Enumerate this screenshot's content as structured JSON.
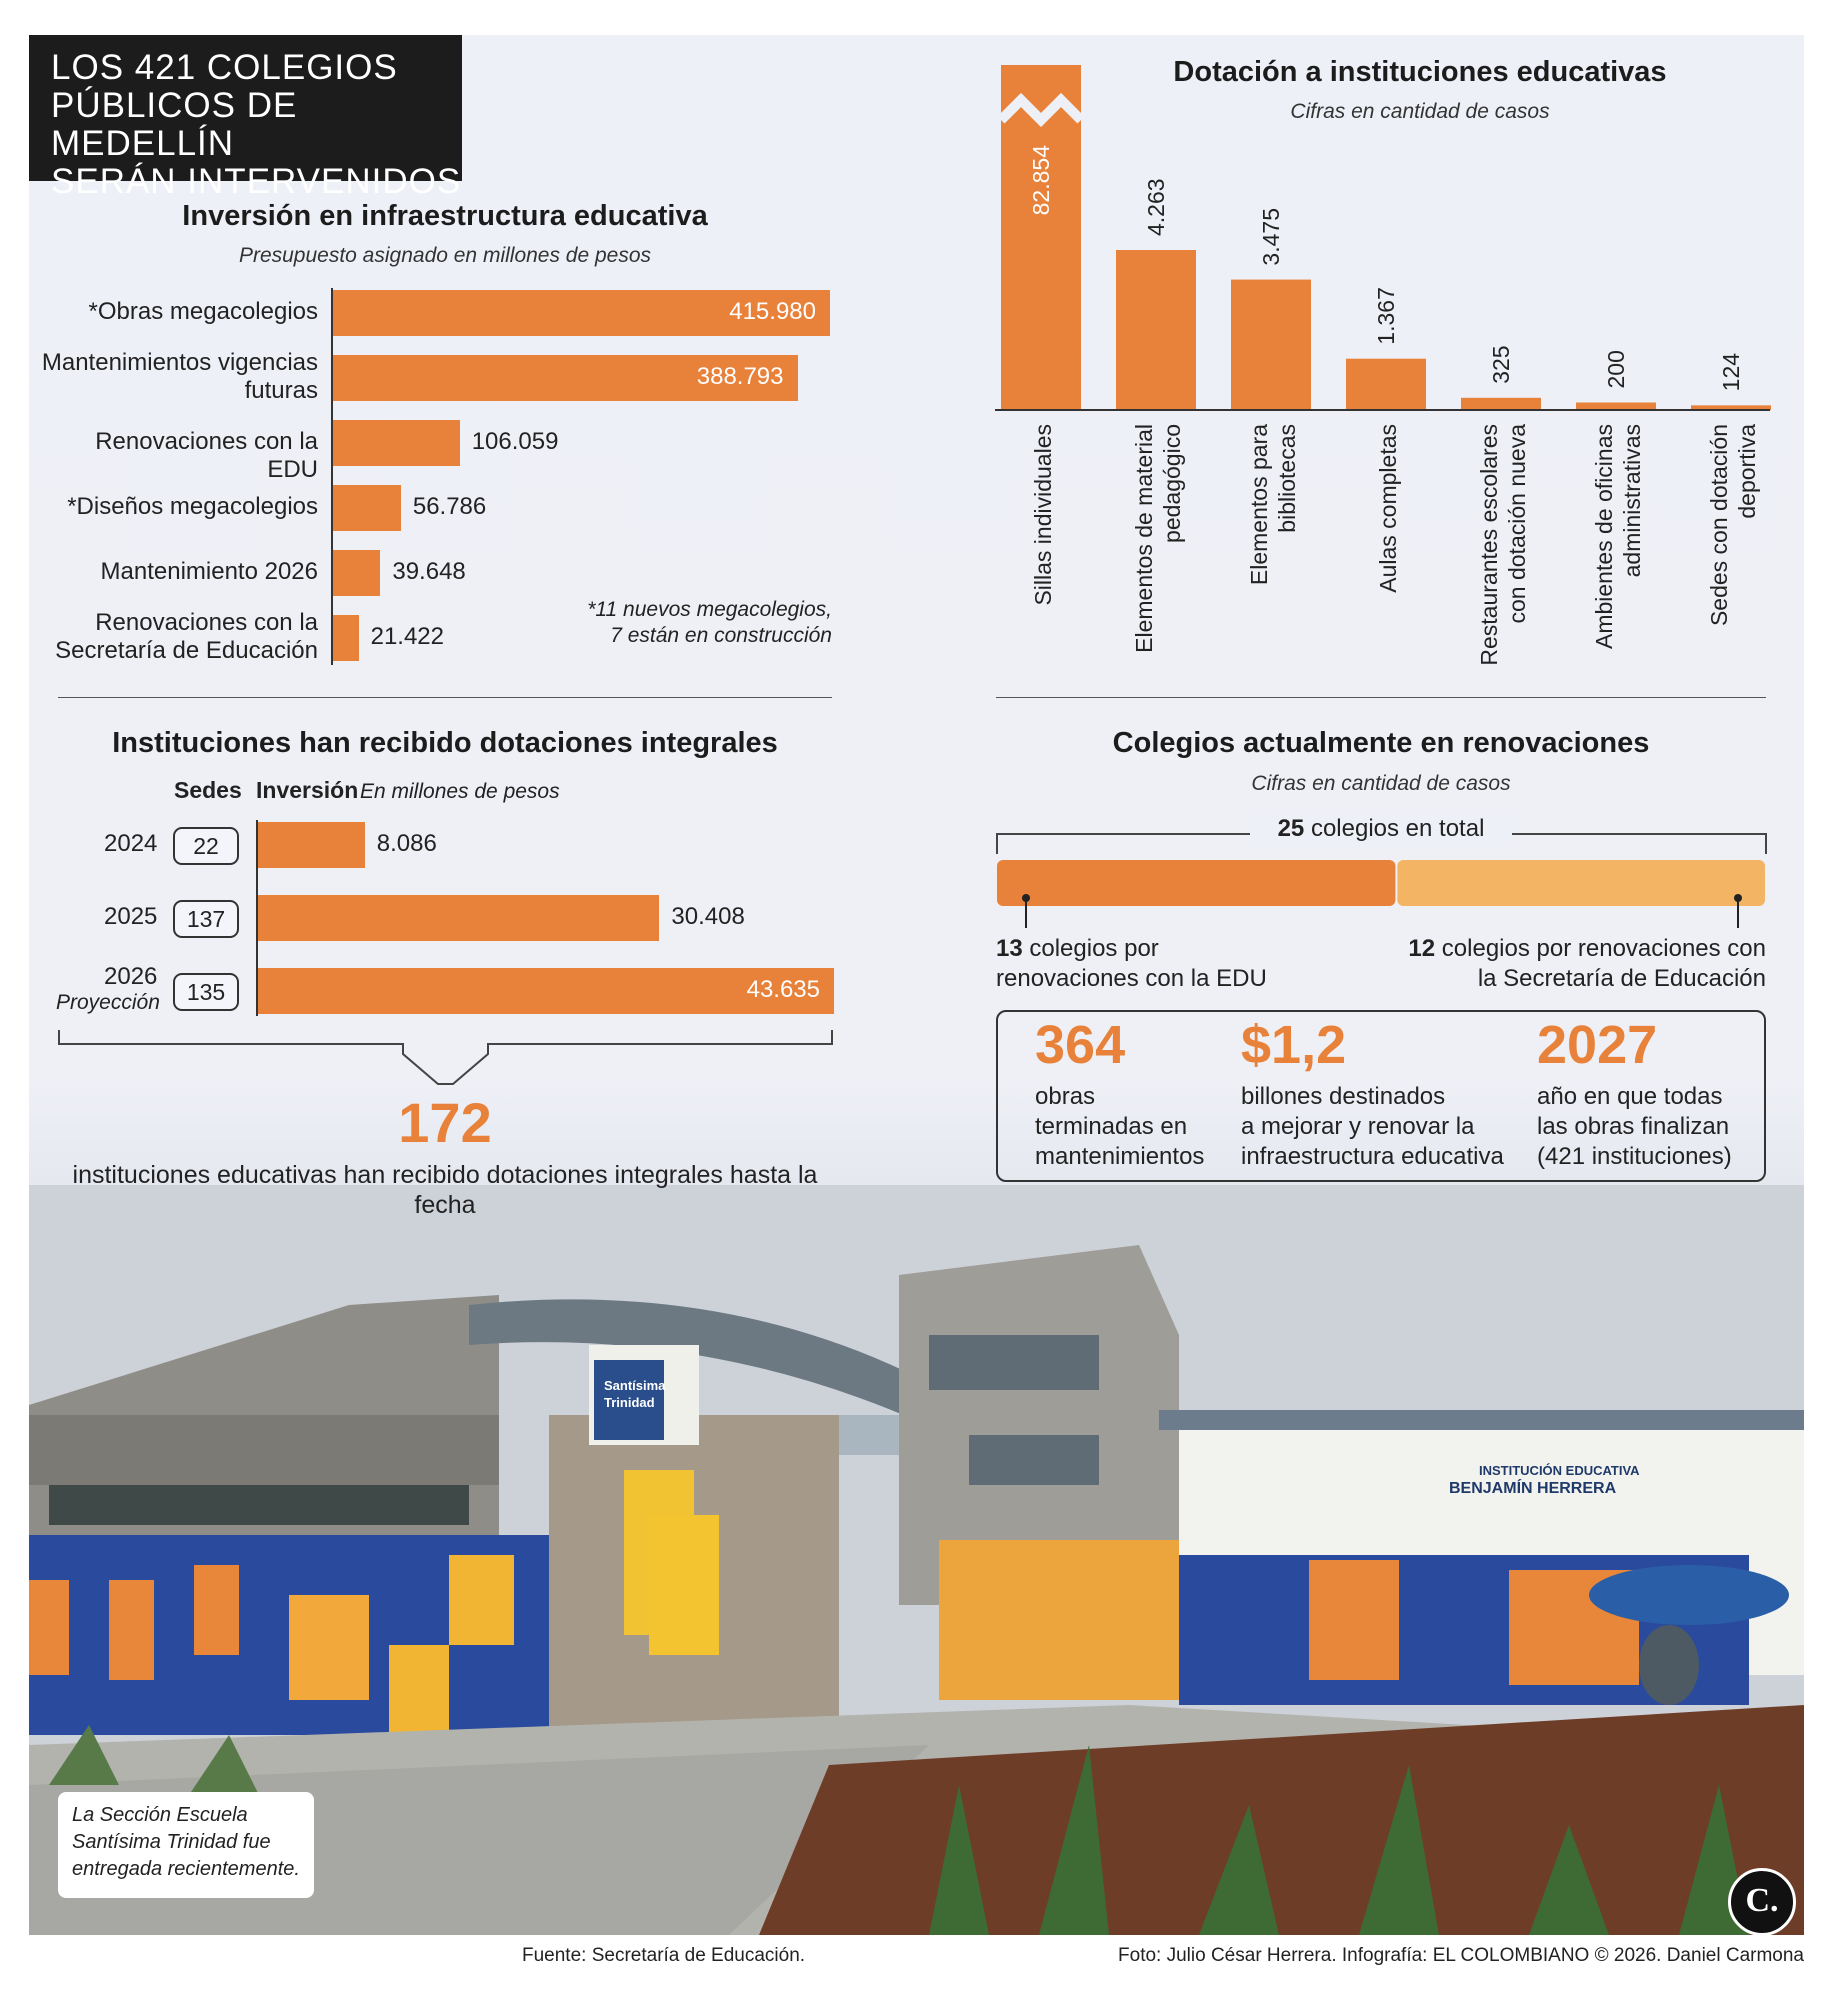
{
  "header": {
    "title_lines": [
      "LOS 421 COLEGIOS",
      "PÚBLICOS DE MEDELLÍN",
      "SERÁN INTERVENIDOS"
    ]
  },
  "chart_data": [
    {
      "type": "bar",
      "orientation": "horizontal",
      "title": "Inversión en infraestructura educativa",
      "subtitle": "Presupuesto asignado en millones de pesos",
      "categories": [
        "*Obras megacolegios",
        "Mantenimientos vigencias futuras",
        "Renovaciones con la EDU",
        "*Diseños megacolegios",
        "Mantenimiento 2026",
        "Renovaciones con la Secretaría de Educación"
      ],
      "values": [
        415980,
        388793,
        106059,
        56786,
        39648,
        21422
      ],
      "value_labels": [
        "415.980",
        "388.793",
        "106.059",
        "56.786",
        "39.648",
        "21.422"
      ],
      "note_lines": [
        "*11 nuevos megacolegios,",
        "7 están en construcción"
      ]
    },
    {
      "type": "bar",
      "orientation": "vertical",
      "title": "Dotación a instituciones educativas",
      "subtitle": "Cifras en cantidad de casos",
      "categories": [
        "Sillas individuales",
        "Elementos de material pedagógico",
        "Elementos para bibliotecas",
        "Aulas completas",
        "Restaurantes escolares con dotación nueva",
        "Ambientes de oficinas administrativas",
        "Sedes con dotación deportiva"
      ],
      "category_lines": [
        [
          "Sillas individuales"
        ],
        [
          "Elementos de material",
          "pedagógico"
        ],
        [
          "Elementos para",
          "bibliotecas"
        ],
        [
          "Aulas completas"
        ],
        [
          "Restaurantes escolares",
          "con dotación nueva"
        ],
        [
          "Ambientes de oficinas",
          "administrativas"
        ],
        [
          "Sedes con dotación",
          "deportiva"
        ]
      ],
      "values": [
        82854,
        4263,
        3475,
        1367,
        325,
        200,
        124
      ],
      "value_labels": [
        "82.854",
        "4.263",
        "3.475",
        "1.367",
        "325",
        "200",
        "124"
      ],
      "broken_axis_first_bar": true
    },
    {
      "type": "bar",
      "orientation": "horizontal",
      "title": "Instituciones han recibido dotaciones integrales",
      "col_sedes": "Sedes",
      "col_inversion": "Inversión",
      "col_inversion_unit": "En millones de pesos",
      "categories": [
        "2024",
        "2025",
        "2026"
      ],
      "category_notes": [
        "",
        "",
        "Proyección"
      ],
      "sedes": [
        "22",
        "137",
        "135"
      ],
      "values": [
        8086,
        30408,
        43635
      ],
      "value_labels": [
        "8.086",
        "30.408",
        "43.635"
      ],
      "total_number": "172",
      "total_text": "instituciones educativas han recibido dotaciones integrales hasta la fecha"
    },
    {
      "type": "bar",
      "orientation": "stacked",
      "title": "Colegios actualmente en renovaciones",
      "subtitle": "Cifras en cantidad de casos",
      "total_number": "25",
      "total_text": "colegios en total",
      "series": [
        {
          "name": "colegios por renovaciones con la EDU",
          "value": 13,
          "value_label": "13",
          "text_lines": [
            "colegios por",
            "renovaciones con la EDU"
          ],
          "color": "#e8823a"
        },
        {
          "name": "colegios por renovaciones con la Secretaría de Educación",
          "value": 12,
          "value_label": "12",
          "text_lines": [
            "colegios por renovaciones con",
            "la Secretaría de Educación"
          ],
          "color": "#f3b463"
        }
      ]
    }
  ],
  "stats": [
    {
      "number": "364",
      "lines": [
        "obras",
        "terminadas en",
        "mantenimientos"
      ]
    },
    {
      "number": "$1,2",
      "lines": [
        "billones destinados",
        "a mejorar y renovar la",
        "infraestructura educativa"
      ]
    },
    {
      "number": "2027",
      "lines": [
        "año en que todas",
        "las obras finalizan",
        "(421 instituciones)"
      ]
    }
  ],
  "photo": {
    "caption_lines": [
      "La Sección Escuela",
      "Santísima Trinidad fue",
      "entregada recientemente."
    ],
    "sign1_lines": [
      "Santísima",
      "Trinidad"
    ],
    "sign2_lines": [
      "INSTITUCIÓN EDUCATIVA",
      "BENJAMÍN HERRERA"
    ]
  },
  "logo": "C.",
  "footer": {
    "source": "Fuente: Secretaría de Educación.",
    "credits": "Foto: Julio César Herrera. Infografía: EL COLOMBIANO © 2026. Daniel Carmona"
  },
  "colors": {
    "accent": "#e8823a",
    "accent_light": "#f3b463",
    "dark": "#1c1c1c"
  }
}
